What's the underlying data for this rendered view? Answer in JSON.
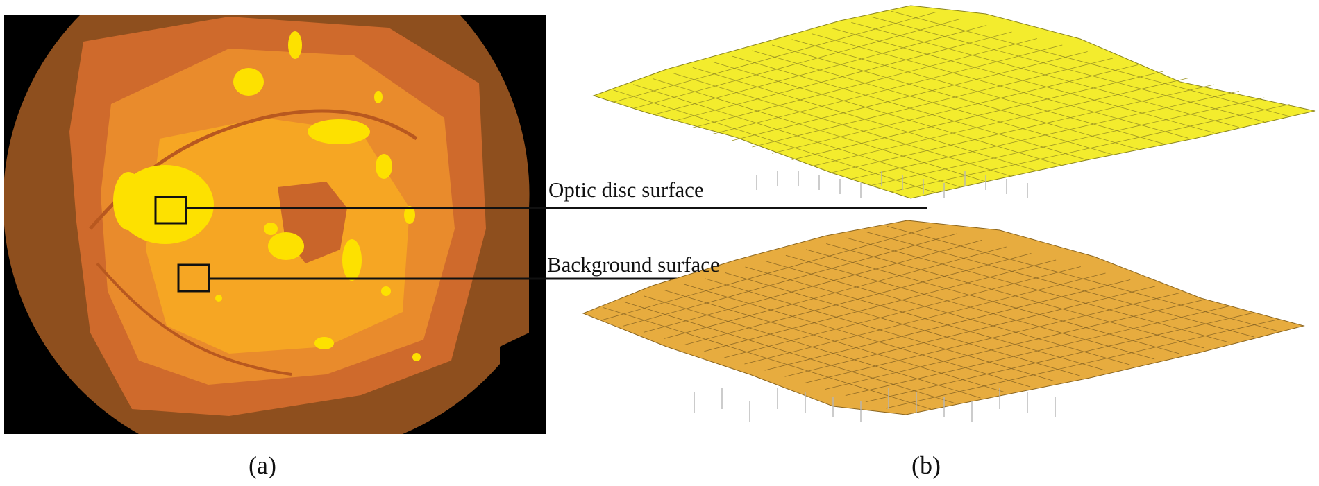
{
  "panels": {
    "a": {
      "caption": "(a)"
    },
    "b": {
      "caption": "(b)"
    }
  },
  "labels": {
    "optic_disc": "Optic disc surface",
    "background": "Background surface"
  },
  "colors": {
    "fundus_border": "#8e4f1e",
    "fundus_ring": "#cf6a2c",
    "fundus_inner": "#e98b2c",
    "fundus_bright": "#f6a623",
    "lesion_yellow": "#fde100",
    "optic_surface": "#f3ec2d",
    "background_surface": "#e7ac3f",
    "leader_line": "#111111"
  }
}
